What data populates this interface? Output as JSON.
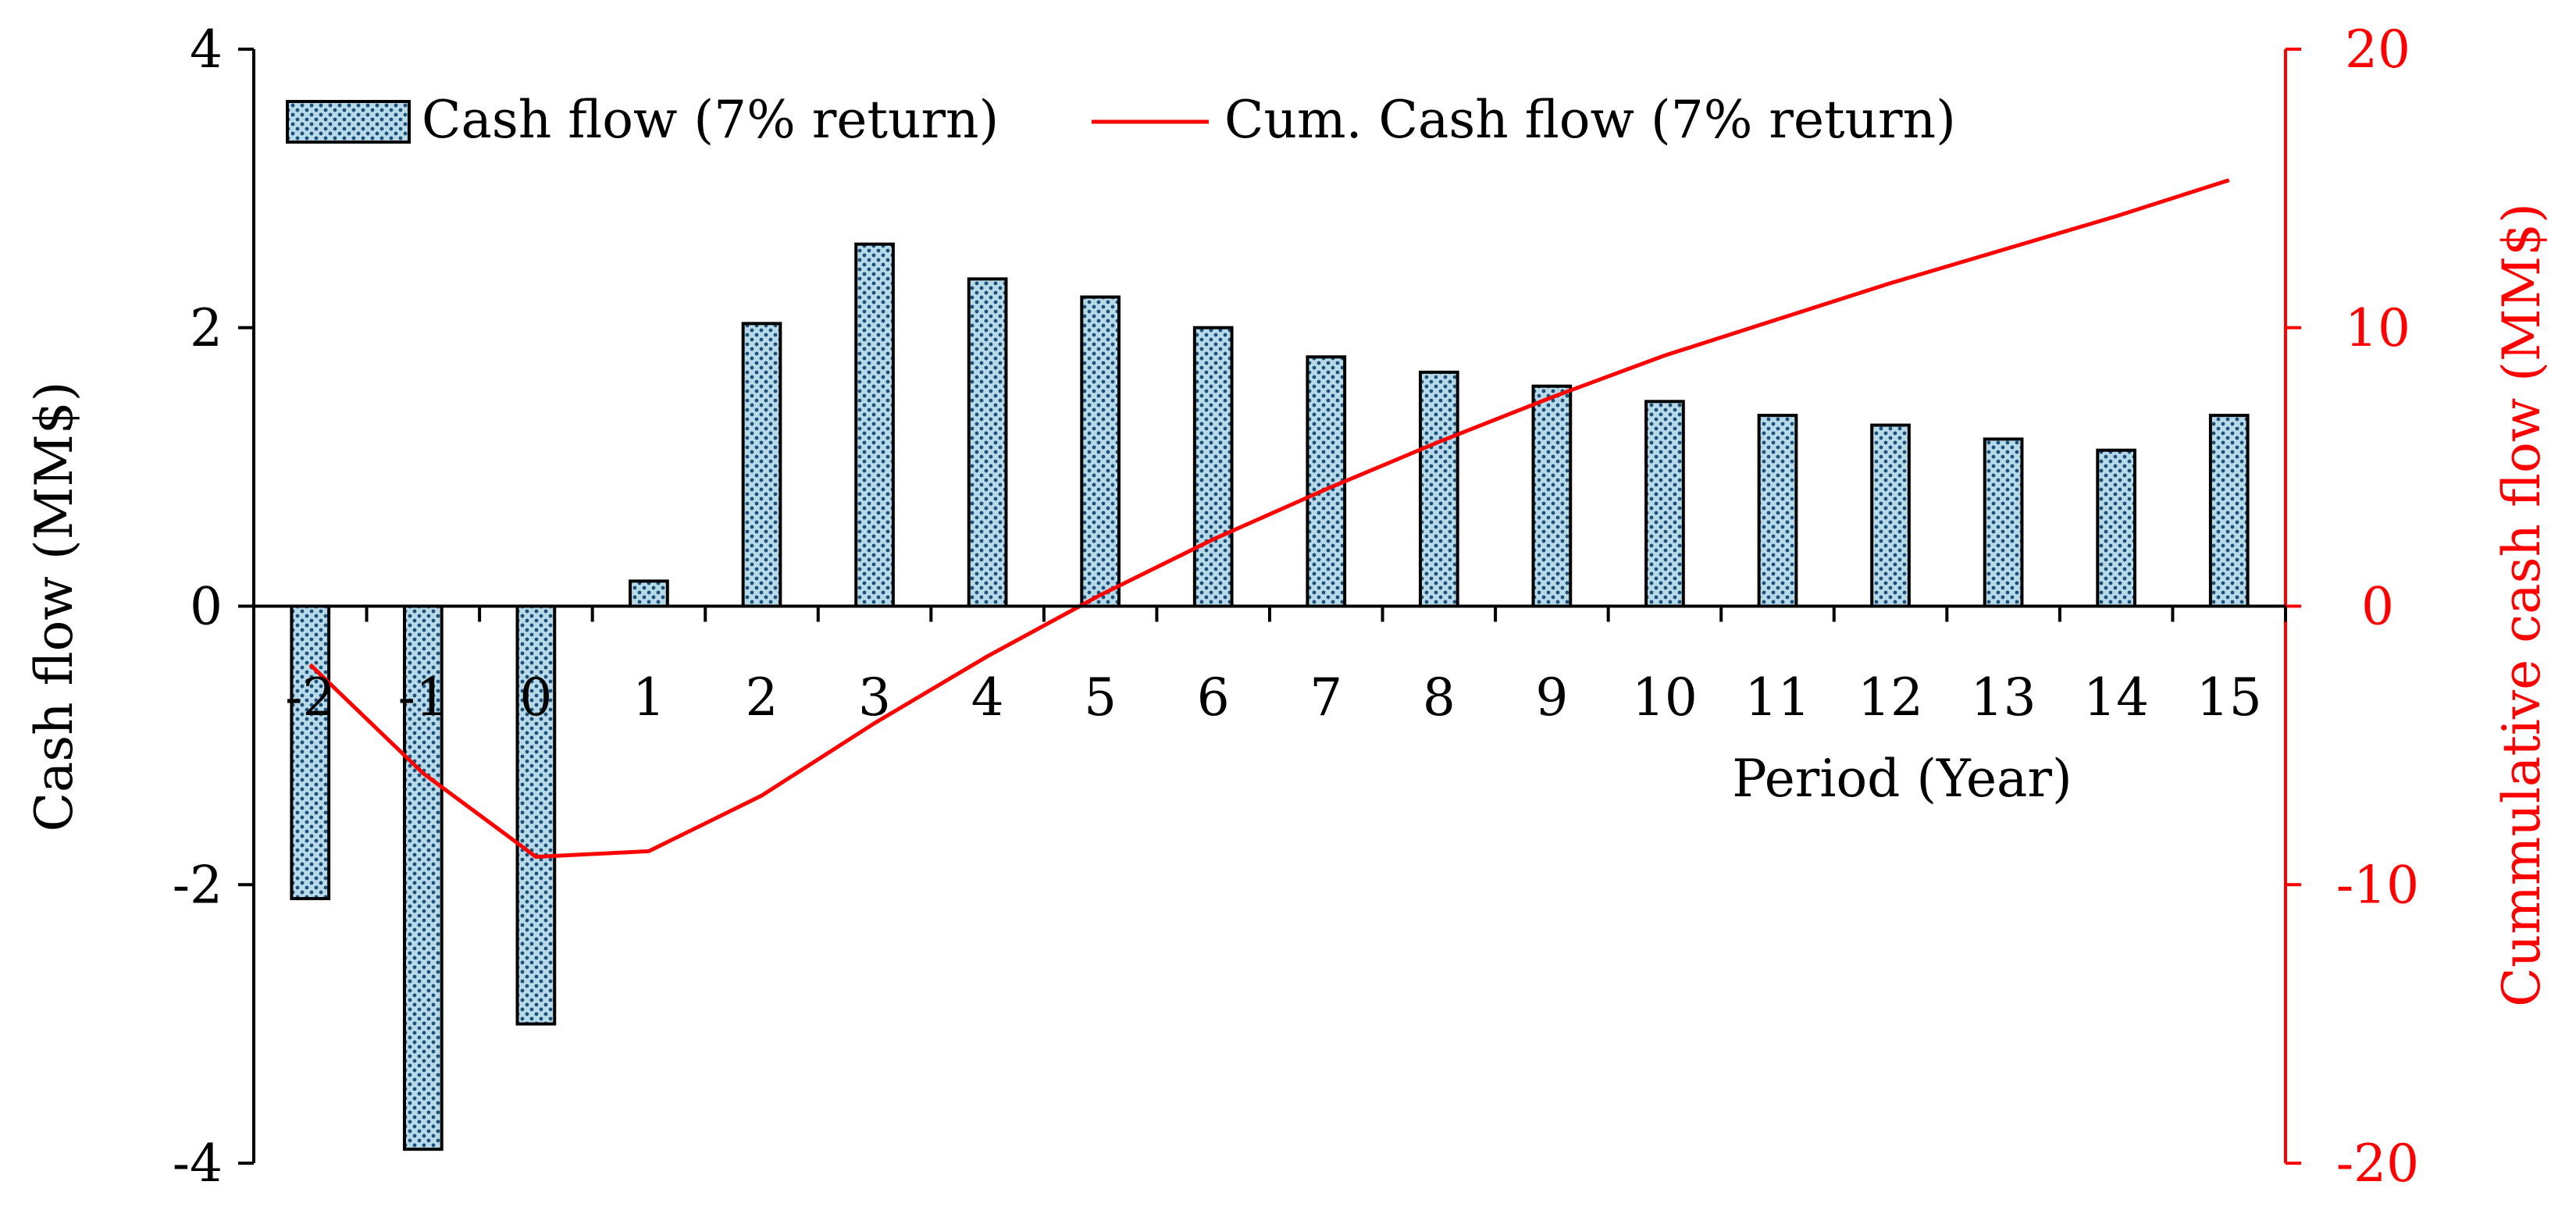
{
  "chart_data": {
    "type": "bar",
    "categories": [
      "-2",
      "-1",
      "0",
      "1",
      "2",
      "3",
      "4",
      "5",
      "6",
      "7",
      "8",
      "9",
      "10",
      "11",
      "12",
      "13",
      "14",
      "15"
    ],
    "series": [
      {
        "name": "Cash flow (7% return)",
        "type": "bar",
        "axis": "left",
        "values": [
          -2.1,
          -3.9,
          -3.0,
          0.18,
          2.03,
          2.6,
          2.35,
          2.22,
          2.0,
          1.79,
          1.68,
          1.58,
          1.47,
          1.37,
          1.3,
          1.2,
          1.12,
          1.37
        ]
      },
      {
        "name": "Cum. Cash flow (7% return)",
        "type": "line",
        "axis": "right",
        "color": "#ff0000",
        "values": [
          -2.1,
          -6.0,
          -9.0,
          -8.8,
          -6.8,
          -4.2,
          -1.8,
          0.4,
          2.4,
          4.2,
          5.9,
          7.5,
          9.0,
          10.3,
          11.6,
          12.8,
          14.0,
          15.3
        ]
      }
    ],
    "xlabel": "Period (Year)",
    "ylabel": "Cash flow (MM$)",
    "y2label": "Cummulative cash flow (MM$)",
    "ylim": [
      -4,
      4
    ],
    "y2lim": [
      -20,
      20
    ],
    "yticks": [
      "-4",
      "-2",
      "0",
      "2",
      "4"
    ],
    "y2ticks": [
      "-20",
      "-10",
      "0",
      "10",
      "20"
    ],
    "grid": false,
    "legend": "top",
    "colors": {
      "bar_fill": "#b8dae8",
      "bar_dots": "#1a4f7a",
      "line": "#ff0000",
      "right_axis": "#ff0000"
    }
  }
}
